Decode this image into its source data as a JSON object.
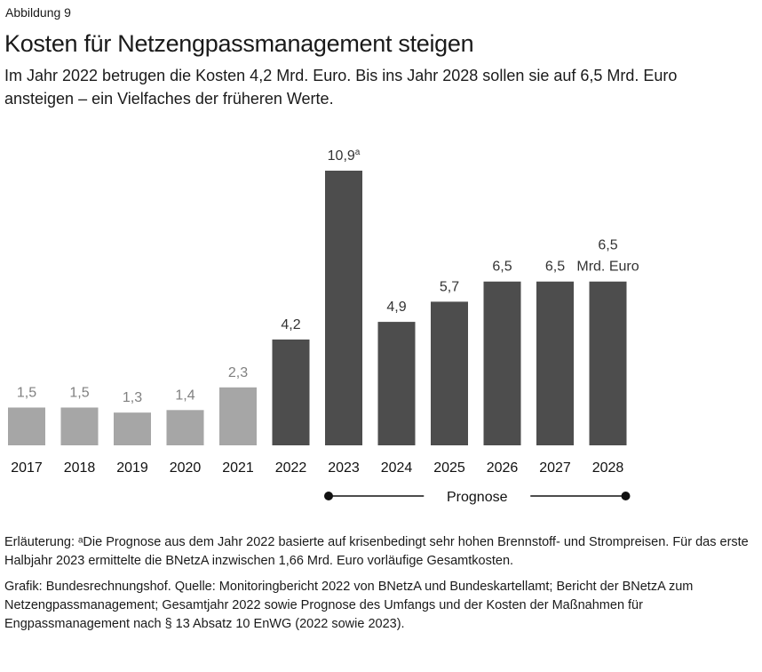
{
  "figure_label": "Abbildung 9",
  "title": "Kosten für Netzengpassmanagement steigen",
  "subtitle": "Im Jahr 2022 betrugen die Kosten 4,2 Mrd. Euro. Bis ins Jahr 2028 sollen sie auf 6,5 Mrd. Euro ansteigen – ein Vielfaches der früheren Werte.",
  "chart_data": {
    "type": "bar",
    "title": "Kosten für Netzengpassmanagement steigen",
    "categories": [
      "2017",
      "2018",
      "2019",
      "2020",
      "2021",
      "2022",
      "2023",
      "2024",
      "2025",
      "2026",
      "2027",
      "2028"
    ],
    "values": [
      1.5,
      1.5,
      1.3,
      1.4,
      2.3,
      4.2,
      10.9,
      4.9,
      5.7,
      6.5,
      6.5,
      6.5
    ],
    "labels": [
      "1,5",
      "1,5",
      "1,3",
      "1,4",
      "2,3",
      "4,2",
      "10,9",
      "4,9",
      "5,7",
      "6,5",
      "6,5",
      "6,5"
    ],
    "label_superscripts": {
      "2023": "a"
    },
    "unit_label": "Mrd. Euro",
    "colors": {
      "historic": "#a6a6a6",
      "recent": "#4d4d4d",
      "historic_label": "#808080",
      "recent_label": "#333333"
    },
    "forecast_bracket": {
      "label": "Prognose",
      "from": "2023",
      "to": "2028"
    },
    "ylim": [
      0,
      10.9
    ],
    "grid": false
  },
  "note": "Erläuterung: ᵃDie Prognose aus dem Jahr 2022 basierte auf krisenbedingt sehr hohen Brennstoff- und Strompreisen. Für das erste Halbjahr 2023 ermittelte die BNetzA inzwischen 1,66 Mrd. Euro vorläufige Gesamtkosten.",
  "source": "Grafik: Bundesrechnungshof. Quelle: Monitoringbericht 2022 von BNetzA und Bundeskartellamt; Bericht der BNetzA zum Netzengpassmanagement; Gesamtjahr 2022 sowie Prognose des Umfangs und der Kosten der Maßnahmen für Engpassmanagement nach § 13 Absatz 10 EnWG (2022 sowie 2023)."
}
